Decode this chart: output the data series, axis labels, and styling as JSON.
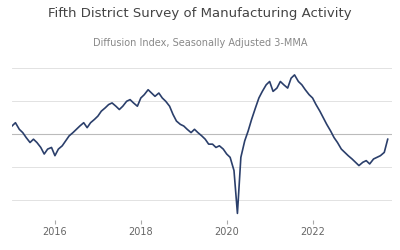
{
  "title": "Fifth District Survey of Manufacturing Activity",
  "subtitle": "Diffusion Index, Seasonally Adjusted 3-MMA",
  "title_fontsize": 9.5,
  "subtitle_fontsize": 7,
  "background_color": "#ffffff",
  "line_color": "#2b3f6b",
  "line_width": 1.2,
  "xticks": [
    2016,
    2018,
    2020,
    2022
  ],
  "ylim": [
    -52,
    42
  ],
  "xlim_start": 2015.0,
  "xlim_end": 2023.85,
  "zero_line_color": "#bbbbbb",
  "grid_color": "#dddddd",
  "dates": [
    2015.0,
    2015.08,
    2015.17,
    2015.25,
    2015.33,
    2015.42,
    2015.5,
    2015.58,
    2015.67,
    2015.75,
    2015.83,
    2015.92,
    2016.0,
    2016.08,
    2016.17,
    2016.25,
    2016.33,
    2016.42,
    2016.5,
    2016.58,
    2016.67,
    2016.75,
    2016.83,
    2016.92,
    2017.0,
    2017.08,
    2017.17,
    2017.25,
    2017.33,
    2017.42,
    2017.5,
    2017.58,
    2017.67,
    2017.75,
    2017.83,
    2017.92,
    2018.0,
    2018.08,
    2018.17,
    2018.25,
    2018.33,
    2018.42,
    2018.5,
    2018.58,
    2018.67,
    2018.75,
    2018.83,
    2018.92,
    2019.0,
    2019.08,
    2019.17,
    2019.25,
    2019.33,
    2019.42,
    2019.5,
    2019.58,
    2019.67,
    2019.75,
    2019.83,
    2019.92,
    2020.0,
    2020.08,
    2020.17,
    2020.25,
    2020.33,
    2020.42,
    2020.5,
    2020.58,
    2020.67,
    2020.75,
    2020.83,
    2020.92,
    2021.0,
    2021.08,
    2021.17,
    2021.25,
    2021.33,
    2021.42,
    2021.5,
    2021.58,
    2021.67,
    2021.75,
    2021.83,
    2021.92,
    2022.0,
    2022.08,
    2022.17,
    2022.25,
    2022.33,
    2022.42,
    2022.5,
    2022.58,
    2022.67,
    2022.75,
    2022.83,
    2022.92,
    2023.0,
    2023.08,
    2023.17,
    2023.25,
    2023.33,
    2023.42,
    2023.5,
    2023.58,
    2023.67,
    2023.75
  ],
  "values": [
    5,
    7,
    3,
    1,
    -2,
    -5,
    -3,
    -5,
    -8,
    -12,
    -9,
    -8,
    -13,
    -9,
    -7,
    -4,
    -1,
    1,
    3,
    5,
    7,
    4,
    7,
    9,
    11,
    14,
    16,
    18,
    19,
    17,
    15,
    17,
    20,
    21,
    19,
    17,
    22,
    24,
    27,
    25,
    23,
    25,
    22,
    20,
    17,
    12,
    8,
    6,
    5,
    3,
    1,
    3,
    1,
    -1,
    -3,
    -6,
    -6,
    -8,
    -7,
    -9,
    -12,
    -14,
    -22,
    -48,
    -14,
    -4,
    2,
    9,
    16,
    22,
    26,
    30,
    32,
    26,
    28,
    32,
    30,
    28,
    34,
    36,
    32,
    30,
    27,
    24,
    22,
    18,
    14,
    10,
    6,
    2,
    -2,
    -5,
    -9,
    -11,
    -13,
    -15,
    -17,
    -19,
    -17,
    -16,
    -18,
    -15,
    -14,
    -13,
    -11,
    -3
  ]
}
